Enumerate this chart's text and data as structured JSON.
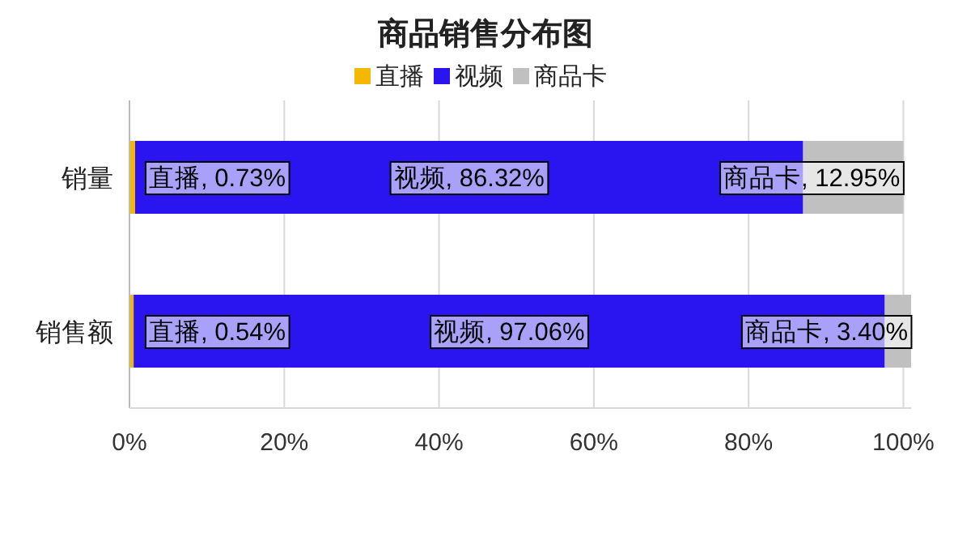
{
  "chart_data": {
    "type": "bar",
    "title": "商品销售分布图",
    "orientation": "horizontal",
    "stacked": true,
    "categories": [
      "销量",
      "销售额"
    ],
    "series": [
      {
        "name": "直播",
        "color": "#f5b800",
        "values": [
          0.73,
          0.54
        ],
        "value_labels": [
          "直播, 0.73%",
          "直播, 0.54%"
        ]
      },
      {
        "name": "视频",
        "color": "#2a14f0",
        "values": [
          86.32,
          97.06
        ],
        "value_labels": [
          "视频, 86.32%",
          "视频, 97.06%"
        ]
      },
      {
        "name": "商品卡",
        "color": "#c0c0c0",
        "values": [
          12.95,
          3.4
        ],
        "value_labels": [
          "商品卡, 12.95%",
          "商品卡, 3.40%"
        ]
      }
    ],
    "xlim": [
      0,
      101
    ],
    "xticks": [
      {
        "value": 0,
        "label": "0%"
      },
      {
        "value": 20,
        "label": "20%"
      },
      {
        "value": 40,
        "label": "40%"
      },
      {
        "value": 60,
        "label": "60%"
      },
      {
        "value": 80,
        "label": "80%"
      },
      {
        "value": 100,
        "label": "100%"
      }
    ],
    "grid": "x",
    "legend": "top"
  }
}
